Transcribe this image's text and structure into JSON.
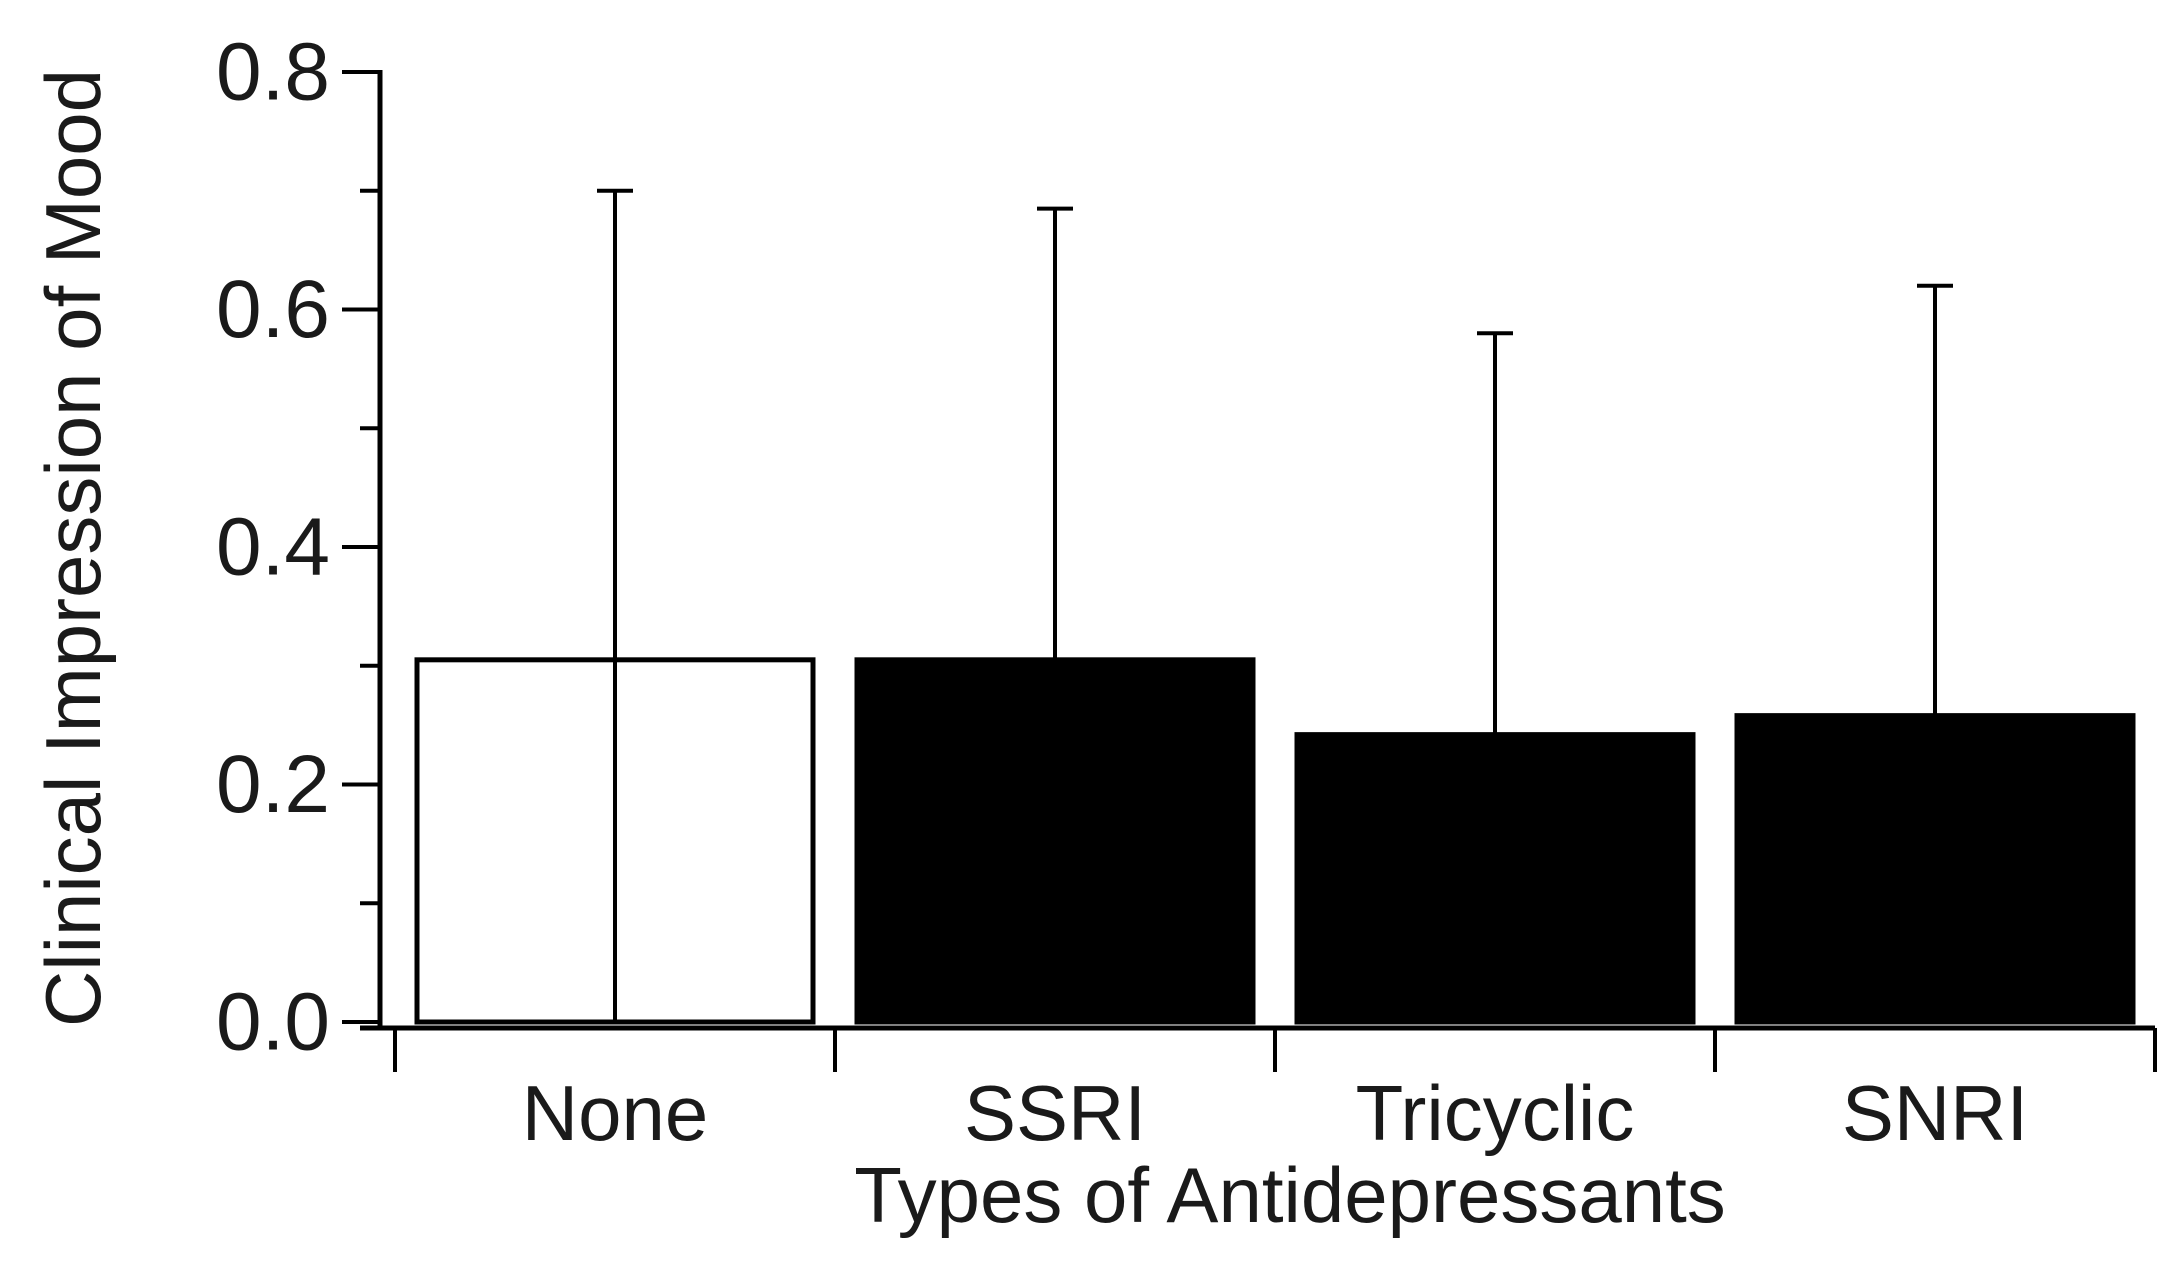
{
  "chart_data": {
    "type": "bar",
    "categories": [
      "None",
      "SSRI",
      "Tricyclic",
      "SNRI"
    ],
    "values": [
      0.305,
      0.305,
      0.242,
      0.258
    ],
    "error_upper": [
      0.7,
      0.685,
      0.58,
      0.62
    ],
    "bar_fill": [
      "#ffffff",
      "#000000",
      "#000000",
      "#000000"
    ],
    "xlabel": "Types of Antidepressants",
    "ylabel": "Clinical Impression of Mood",
    "ylim": [
      0.0,
      0.8
    ],
    "yticks": [
      "0.0",
      "0.2",
      "0.4",
      "0.6",
      "0.8"
    ],
    "grid": false,
    "legend": "none"
  }
}
